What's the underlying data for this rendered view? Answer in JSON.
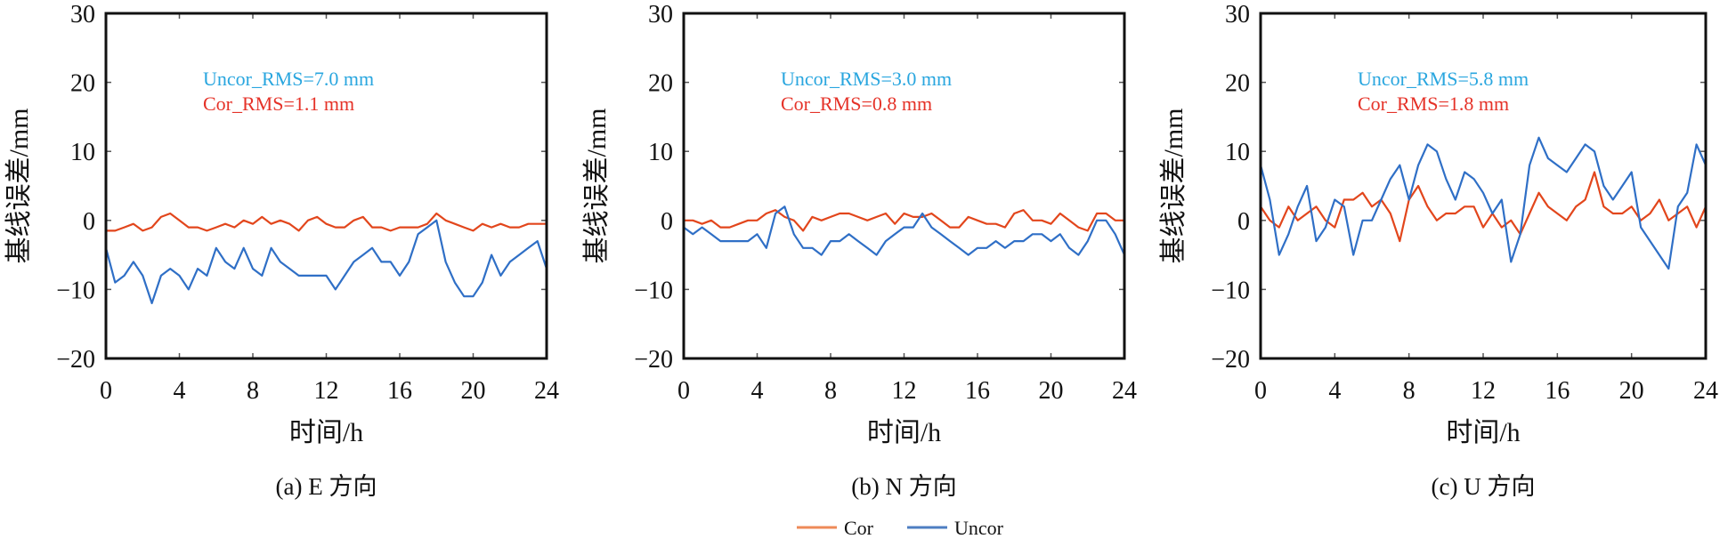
{
  "chart_data": [
    {
      "type": "line",
      "caption": "(a) E 方向",
      "xlabel": "时间/h",
      "ylabel": "基线误差/mm",
      "xlim": [
        0,
        24
      ],
      "ylim": [
        -20,
        30
      ],
      "xticks": [
        "0",
        "4",
        "8",
        "12",
        "16",
        "20",
        "24"
      ],
      "yticks": [
        "30",
        "20",
        "10",
        "0",
        "−10",
        "−20"
      ],
      "annotations": [
        {
          "text": "Uncor_RMS=7.0 mm",
          "color": "#29a6df"
        },
        {
          "text": "Cor_RMS=1.1 mm",
          "color": "#e53228"
        }
      ],
      "series": [
        {
          "name": "Cor",
          "color": "#e2461c",
          "values": [
            -1.5,
            -1.5,
            -1,
            -0.5,
            -1.5,
            -1,
            0.5,
            1,
            0,
            -1,
            -1,
            -1.5,
            -1,
            -0.5,
            -1,
            0,
            -0.5,
            0.5,
            -0.5,
            0,
            -0.5,
            -1.5,
            0,
            0.5,
            -0.5,
            -1,
            -1,
            0,
            0.5,
            -1,
            -1,
            -1.5,
            -1,
            -1,
            -1,
            -0.5,
            1,
            0,
            -0.5,
            -1,
            -1.5,
            -0.5,
            -1,
            -0.5,
            -1,
            -1,
            -0.5,
            -0.5,
            -0.5
          ]
        },
        {
          "name": "Uncor",
          "color": "#2f6fc6",
          "values": [
            -4,
            -9,
            -8,
            -6,
            -8,
            -12,
            -8,
            -7,
            -8,
            -10,
            -7,
            -8,
            -4,
            -6,
            -7,
            -4,
            -7,
            -8,
            -4,
            -6,
            -7,
            -8,
            -8,
            -8,
            -8,
            -10,
            -8,
            -6,
            -5,
            -4,
            -6,
            -6,
            -8,
            -6,
            -2,
            -1,
            0,
            -6,
            -9,
            -11,
            -11,
            -9,
            -5,
            -8,
            -6,
            -5,
            -4,
            -3,
            -7
          ]
        }
      ]
    },
    {
      "type": "line",
      "caption": "(b) N 方向",
      "xlabel": "时间/h",
      "ylabel": "基线误差/mm",
      "xlim": [
        0,
        24
      ],
      "ylim": [
        -20,
        30
      ],
      "xticks": [
        "0",
        "4",
        "8",
        "12",
        "16",
        "20",
        "24"
      ],
      "yticks": [
        "30",
        "20",
        "10",
        "0",
        "−10",
        "−20"
      ],
      "annotations": [
        {
          "text": "Uncor_RMS=3.0 mm",
          "color": "#29a6df"
        },
        {
          "text": "Cor_RMS=0.8 mm",
          "color": "#e53228"
        }
      ],
      "series": [
        {
          "name": "Cor",
          "color": "#e2461c",
          "values": [
            0,
            0,
            -0.5,
            0,
            -1,
            -1,
            -0.5,
            0,
            0,
            1,
            1.5,
            0.5,
            0,
            -1.5,
            0.5,
            0,
            0.5,
            1,
            1,
            0.5,
            0,
            0.5,
            1,
            -0.5,
            1,
            0.5,
            0.5,
            1,
            0,
            -1,
            -1,
            0.5,
            0,
            -0.5,
            -0.5,
            -1,
            1,
            1.5,
            0,
            0,
            -0.5,
            1,
            0,
            -1,
            -1.5,
            1,
            1,
            0,
            0
          ]
        },
        {
          "name": "Uncor",
          "color": "#2f6fc6",
          "values": [
            -1,
            -2,
            -1,
            -2,
            -3,
            -3,
            -3,
            -3,
            -2,
            -4,
            1,
            2,
            -2,
            -4,
            -4,
            -5,
            -3,
            -3,
            -2,
            -3,
            -4,
            -5,
            -3,
            -2,
            -1,
            -1,
            1,
            -1,
            -2,
            -3,
            -4,
            -5,
            -4,
            -4,
            -3,
            -4,
            -3,
            -3,
            -2,
            -2,
            -3,
            -2,
            -4,
            -5,
            -3,
            0,
            0,
            -2,
            -5
          ]
        }
      ]
    },
    {
      "type": "line",
      "caption": "(c) U 方向",
      "xlabel": "时间/h",
      "ylabel": "基线误差/mm",
      "xlim": [
        0,
        24
      ],
      "ylim": [
        -20,
        30
      ],
      "xticks": [
        "0",
        "4",
        "8",
        "12",
        "16",
        "20",
        "24"
      ],
      "yticks": [
        "30",
        "20",
        "10",
        "0",
        "−10",
        "−20"
      ],
      "annotations": [
        {
          "text": "Uncor_RMS=5.8 mm",
          "color": "#29a6df"
        },
        {
          "text": "Cor_RMS=1.8 mm",
          "color": "#e53228"
        }
      ],
      "series": [
        {
          "name": "Cor",
          "color": "#e2461c",
          "values": [
            2,
            0,
            -1,
            2,
            0,
            1,
            2,
            0,
            -1,
            3,
            3,
            4,
            2,
            3,
            1,
            -3,
            3,
            5,
            2,
            0,
            1,
            1,
            2,
            2,
            -1,
            1,
            -1,
            0,
            -2,
            1,
            4,
            2,
            1,
            0,
            2,
            3,
            7,
            2,
            1,
            1,
            2,
            0,
            1,
            3,
            0,
            1,
            2,
            -1,
            2
          ]
        },
        {
          "name": "Uncor",
          "color": "#2f6fc6",
          "values": [
            8,
            3,
            -5,
            -2,
            2,
            5,
            -3,
            -1,
            3,
            2,
            -5,
            0,
            0,
            3,
            6,
            8,
            3,
            8,
            11,
            10,
            6,
            3,
            7,
            6,
            4,
            1,
            3,
            -6,
            -2,
            8,
            12,
            9,
            8,
            7,
            9,
            11,
            10,
            5,
            3,
            5,
            7,
            -1,
            -3,
            -5,
            -7,
            2,
            4,
            11,
            8
          ]
        }
      ]
    }
  ],
  "legend": {
    "items": [
      {
        "label": "Cor",
        "color": "#ee8a58"
      },
      {
        "label": "Uncor",
        "color": "#4d7ec2"
      }
    ]
  }
}
